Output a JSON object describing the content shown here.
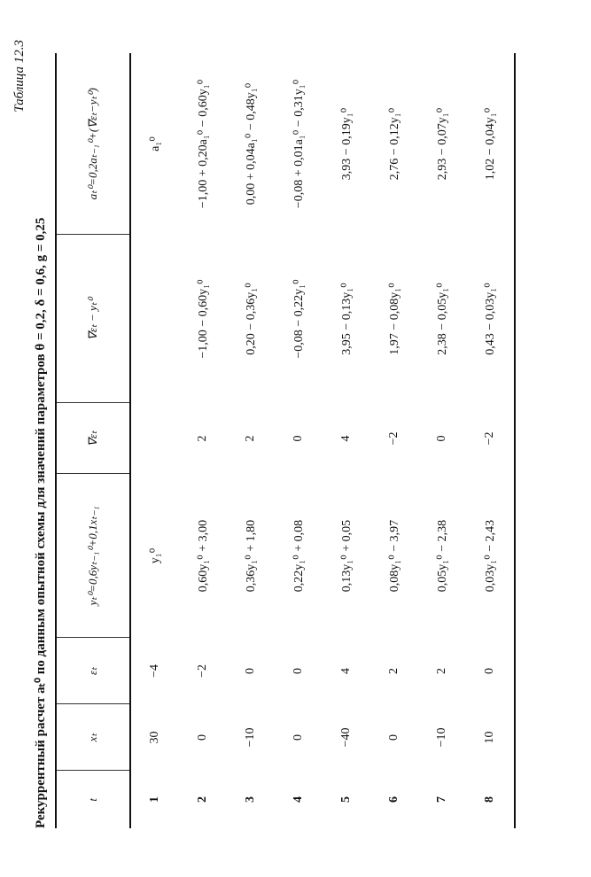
{
  "caption": "Таблица 12.3",
  "title": "Рекуррентный расчет aₜ⁰ по данным опытной схемы для значений параметров θ = 0,2, δ = 0,6, g = 0,25",
  "table": {
    "headers": [
      "t",
      "xₜ",
      "εₜ",
      "yₜ⁰=0,6yₜ₋₁⁰+0,1xₜ₋₁",
      "∇εₜ",
      "∇εₜ − yₜ⁰",
      "aₜ⁰=0,2aₜ₋₁⁰+(∇εₜ−yₜ⁰)"
    ],
    "rows": [
      [
        "1",
        "30",
        "−4",
        "y₁⁰",
        "",
        "",
        "a₁⁰"
      ],
      [
        "2",
        "0",
        "−2",
        "0,60y₁⁰ + 3,00",
        "2",
        "−1,00 − 0,60y₁⁰",
        "−1,00 + 0,20a₁⁰ − 0,60y₁⁰"
      ],
      [
        "3",
        "−10",
        "0",
        "0,36y₁⁰ + 1,80",
        "2",
        "0,20 − 0,36y₁⁰",
        "0,00 + 0,04a₁⁰ − 0,48y₁⁰"
      ],
      [
        "4",
        "0",
        "0",
        "0,22y₁⁰ + 0,08",
        "0",
        "−0,08 − 0,22y₁⁰",
        "−0,08 + 0,01a₁⁰ − 0,31y₁⁰"
      ],
      [
        "5",
        "−40",
        "4",
        "0,13y₁⁰ + 0,05",
        "4",
        "3,95 − 0,13y₁⁰",
        "3,93 − 0,19y₁⁰"
      ],
      [
        "6",
        "0",
        "2",
        "0,08y₁⁰ − 3,97",
        "−2",
        "1,97 − 0,08y₁⁰",
        "2,76 − 0,12y₁⁰"
      ],
      [
        "7",
        "−10",
        "2",
        "0,05y₁⁰ − 2,38",
        "0",
        "2,38 − 0,05y₁⁰",
        "2,93 − 0,07y₁⁰"
      ],
      [
        "8",
        "10",
        "0",
        "0,03y₁⁰ − 2,43",
        "−2",
        "0,43 − 0,03y₁⁰",
        "1,02 − 0,04y₁⁰"
      ]
    ]
  }
}
